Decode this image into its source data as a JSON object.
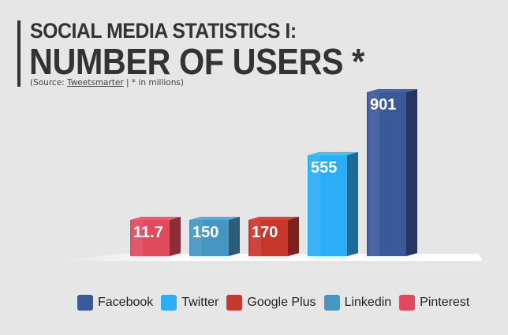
{
  "header": {
    "title_line1": "SOCIAL MEDIA STATISTICS I:",
    "title_line2": "NUMBER OF USERS *",
    "source_prefix": "(Source: ",
    "source_link": "Tweetsmarter",
    "source_suffix": " | * in millions)"
  },
  "chart_data": {
    "type": "bar",
    "categories": [
      "Pinterest",
      "Linkedin",
      "Google Plus",
      "Twitter",
      "Facebook"
    ],
    "values": [
      11.7,
      150,
      170,
      555,
      901
    ],
    "value_labels": [
      "11.7",
      "150",
      "170",
      "555",
      "901"
    ],
    "colors": [
      "#e04a5c",
      "#4696c2",
      "#c8372d",
      "#2aaef5",
      "#3b5998"
    ],
    "title": "SOCIAL MEDIA STATISTICS I: NUMBER OF USERS *",
    "unit": "millions",
    "grid": false,
    "legend_position": "bottom",
    "legend": [
      {
        "name": "Facebook",
        "color": "#3b5998"
      },
      {
        "name": "Twitter",
        "color": "#2aaef5"
      },
      {
        "name": "Google Plus",
        "color": "#c8372d"
      },
      {
        "name": "Linkedin",
        "color": "#4696c2"
      },
      {
        "name": "Pinterest",
        "color": "#e04a5c"
      }
    ]
  }
}
